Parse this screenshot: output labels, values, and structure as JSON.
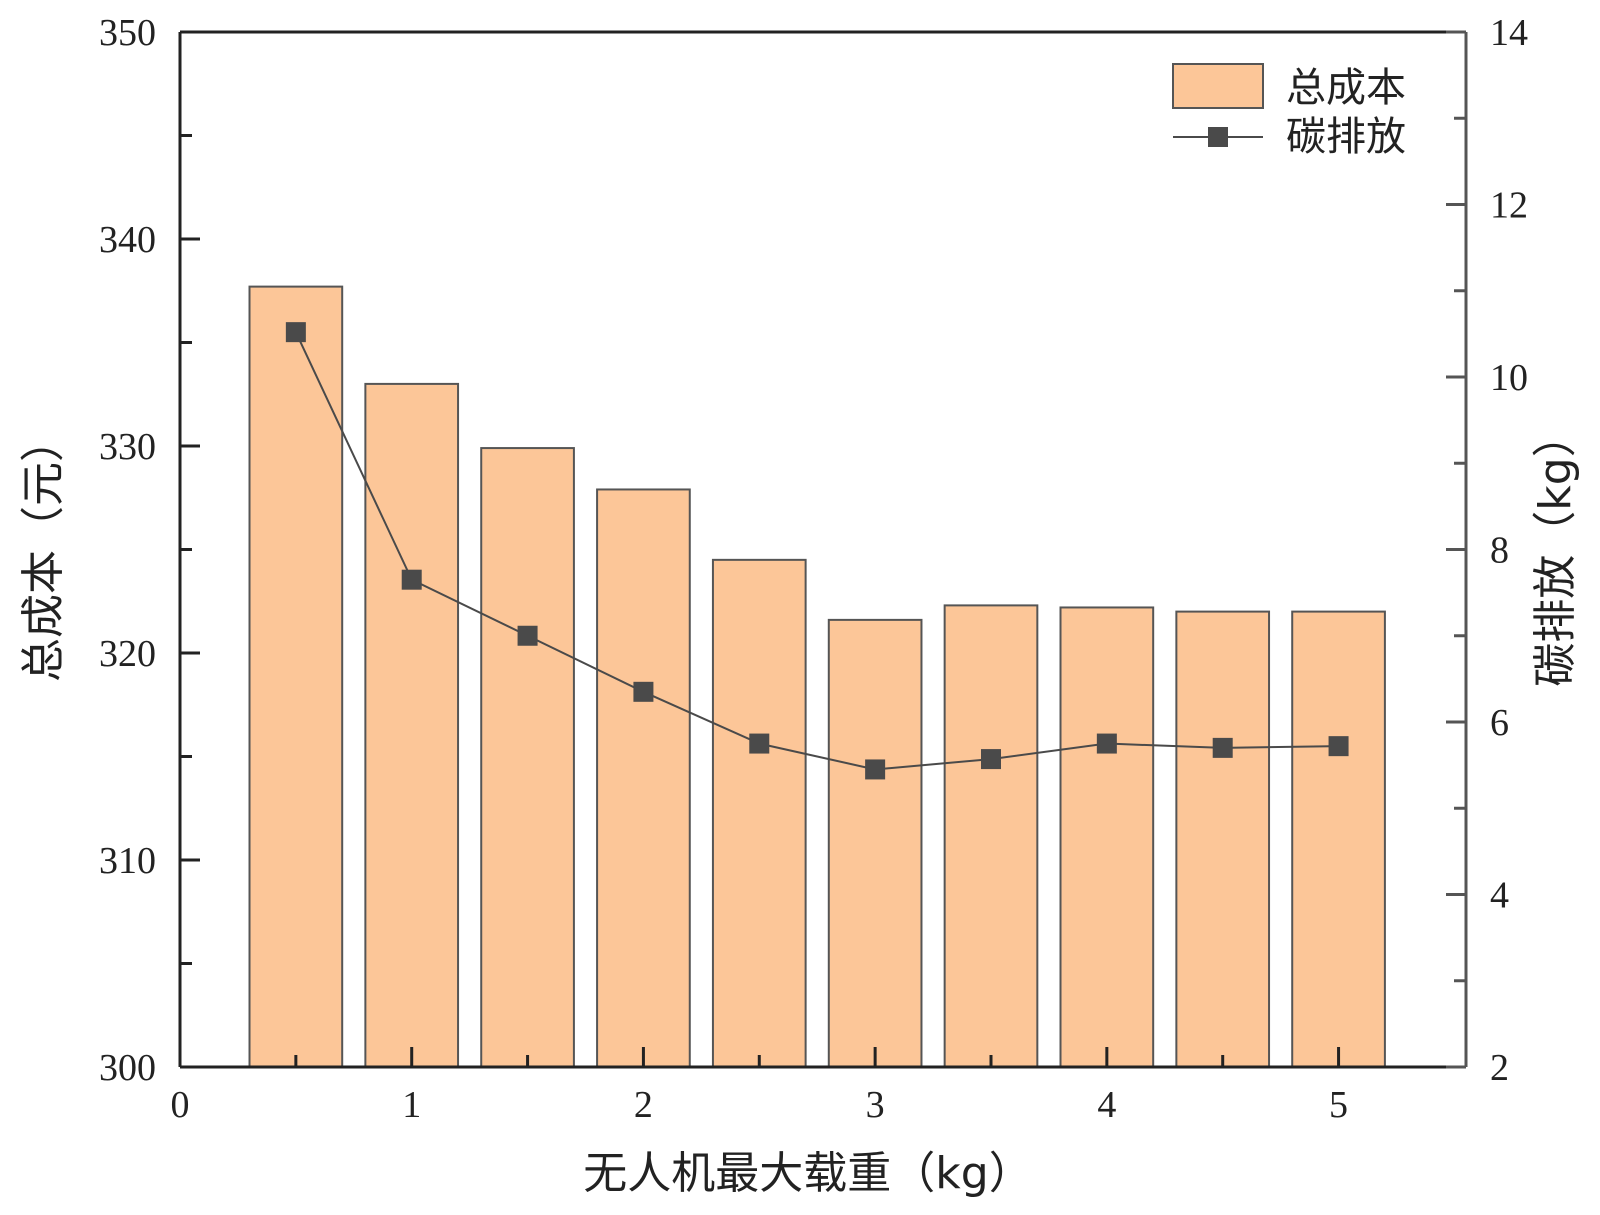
{
  "chart_data": {
    "type": "bar",
    "x": [
      0.5,
      1,
      1.5,
      2,
      2.5,
      3,
      3.5,
      4,
      4.5,
      5
    ],
    "xlabel": "无人机最大载重（kg）",
    "xlim": [
      0,
      5.55
    ],
    "xticks": [
      "0",
      "1",
      "2",
      "3",
      "4",
      "5"
    ],
    "y_left": {
      "label": "总成本（元）",
      "lim": [
        300,
        350
      ],
      "ticks": [
        "300",
        "310",
        "320",
        "330",
        "340",
        "350"
      ]
    },
    "y_right": {
      "label": "碳排放（kg）",
      "lim": [
        2,
        14
      ],
      "ticks": [
        "2",
        "4",
        "6",
        "8",
        "10",
        "12",
        "14"
      ]
    },
    "series": [
      {
        "name": "总成本",
        "type": "bar",
        "axis": "left",
        "values": [
          337.7,
          333.0,
          329.9,
          327.9,
          324.5,
          321.6,
          322.3,
          322.2,
          322.0,
          322.0
        ],
        "color": "#fcc698",
        "edge_color": "#555555"
      },
      {
        "name": "碳排放",
        "type": "line",
        "axis": "right",
        "marker": "square",
        "values": [
          10.52,
          7.65,
          7.0,
          6.35,
          5.75,
          5.45,
          5.57,
          5.75,
          5.7,
          5.72
        ],
        "color": "#4a4a4a"
      }
    ],
    "legend": {
      "position": "top-right"
    },
    "grid": false
  }
}
